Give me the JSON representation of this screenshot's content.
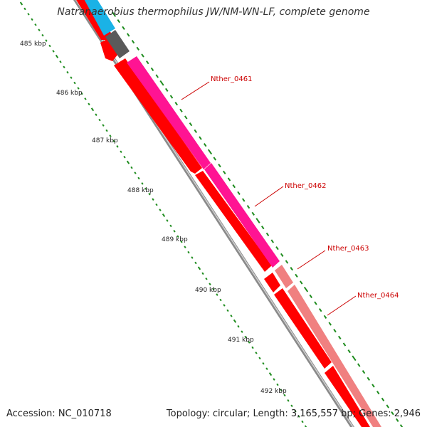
{
  "title": "Natranaerobius thermophilus JW/NM-WN-LF, complete genome",
  "footer": {
    "accession": "Accession: NC_010718",
    "summary": "Topology: circular; Length: 3,165,557 bp; Genes: 2,946"
  },
  "ticks": [
    "485 kbp",
    "486 kbp",
    "487 kbp",
    "488 kbp",
    "489 kbp",
    "490 kbp",
    "491 kbp",
    "492 kbp"
  ],
  "genes": [
    "Nther_0461",
    "Nther_0462",
    "Nther_0463",
    "Nther_0464"
  ],
  "colors": {
    "cds_red": "#ff0000",
    "backbone": "#808080",
    "pink_strong": "#ff1493",
    "pink_light": "#f08080",
    "cyan": "#1ab2e6",
    "dark_gray": "#555555",
    "tick_green": "#1e8c1e",
    "label_red": "#cc0000"
  }
}
